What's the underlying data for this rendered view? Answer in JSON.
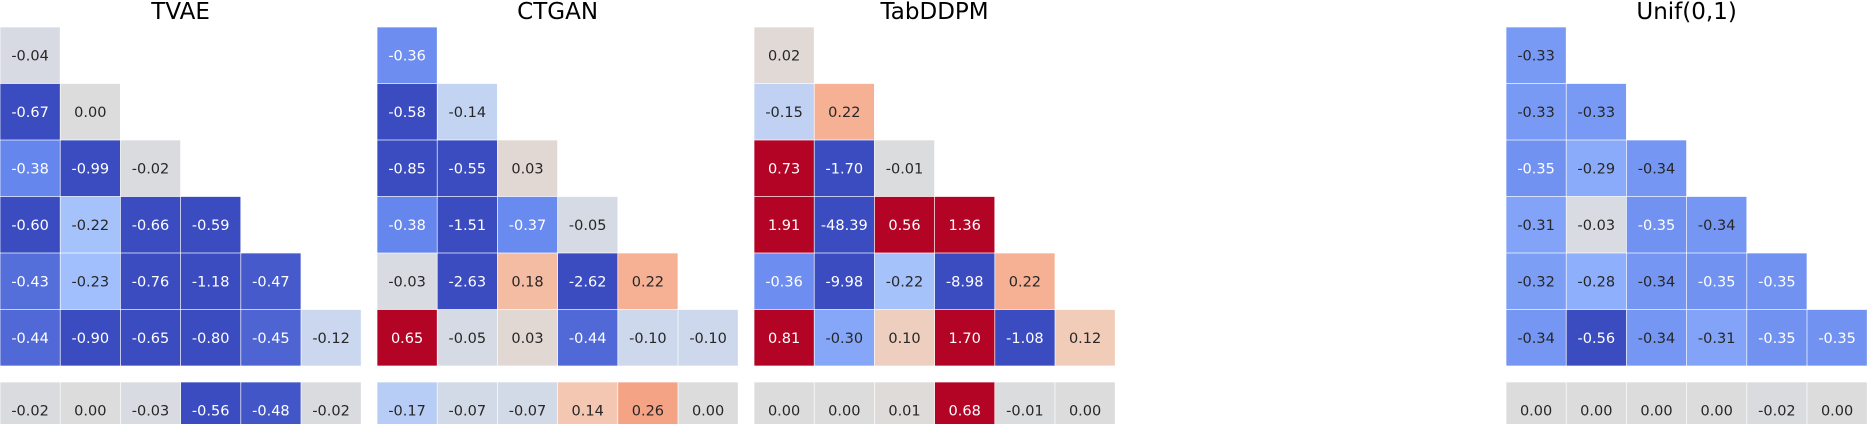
{
  "chart_data": [
    {
      "type": "heatmap",
      "title": "TVAE",
      "lower_triangle": [
        [
          -0.04
        ],
        [
          -0.67,
          0.0
        ],
        [
          -0.38,
          -0.99,
          -0.02
        ],
        [
          -0.6,
          -0.22,
          -0.66,
          -0.59
        ],
        [
          -0.43,
          -0.23,
          -0.76,
          -1.18,
          -0.47
        ],
        [
          -0.44,
          -0.9,
          -0.65,
          -0.8,
          -0.45,
          -0.12
        ]
      ],
      "bottom_row": [
        -0.02,
        -0.0,
        -0.03,
        -0.56,
        -0.48,
        -0.02
      ]
    },
    {
      "type": "heatmap",
      "title": "CTGAN",
      "lower_triangle": [
        [
          -0.36
        ],
        [
          -0.58,
          -0.14
        ],
        [
          -0.85,
          -0.55,
          0.03
        ],
        [
          -0.38,
          -1.51,
          -0.37,
          -0.05
        ],
        [
          -0.03,
          -2.63,
          0.18,
          -2.62,
          0.22
        ],
        [
          0.65,
          -0.05,
          0.03,
          -0.44,
          -0.1,
          -0.1
        ]
      ],
      "bottom_row": [
        -0.17,
        -0.07,
        -0.07,
        0.14,
        0.26,
        -0.0
      ]
    },
    {
      "type": "heatmap",
      "title": "TabDDPM",
      "lower_triangle": [
        [
          0.02
        ],
        [
          -0.15,
          0.22
        ],
        [
          0.73,
          -1.7,
          -0.01
        ],
        [
          1.91,
          -48.39,
          0.56,
          1.36
        ],
        [
          -0.36,
          -9.98,
          -0.22,
          -8.98,
          0.22
        ],
        [
          0.81,
          -0.3,
          0.1,
          1.7,
          -1.08,
          0.12
        ]
      ],
      "bottom_row": [
        0.0,
        -0.0,
        0.01,
        0.68,
        -0.01,
        0.0
      ]
    },
    {
      "type": "heatmap",
      "title": "Unif(0,1)",
      "lower_triangle": [
        [
          -0.33
        ],
        [
          -0.33,
          -0.33
        ],
        [
          -0.35,
          -0.29,
          -0.34
        ],
        [
          -0.31,
          -0.03,
          -0.35,
          -0.34
        ],
        [
          -0.32,
          -0.28,
          -0.34,
          -0.35,
          -0.35
        ],
        [
          -0.34,
          -0.56,
          -0.34,
          -0.31,
          -0.35,
          -0.35
        ]
      ],
      "bottom_row": [
        -0.0,
        0.0,
        0.0,
        -0.0,
        -0.02,
        -0.0
      ]
    }
  ],
  "colormap": {
    "name": "coolwarm",
    "range": [
      -0.5,
      0.5
    ],
    "stops": [
      "#3b4cc0",
      "#6788ee",
      "#9abbff",
      "#c9d7f0",
      "#dddcdc",
      "#f2cbb7",
      "#f7a889",
      "#e26952",
      "#b40426"
    ]
  }
}
